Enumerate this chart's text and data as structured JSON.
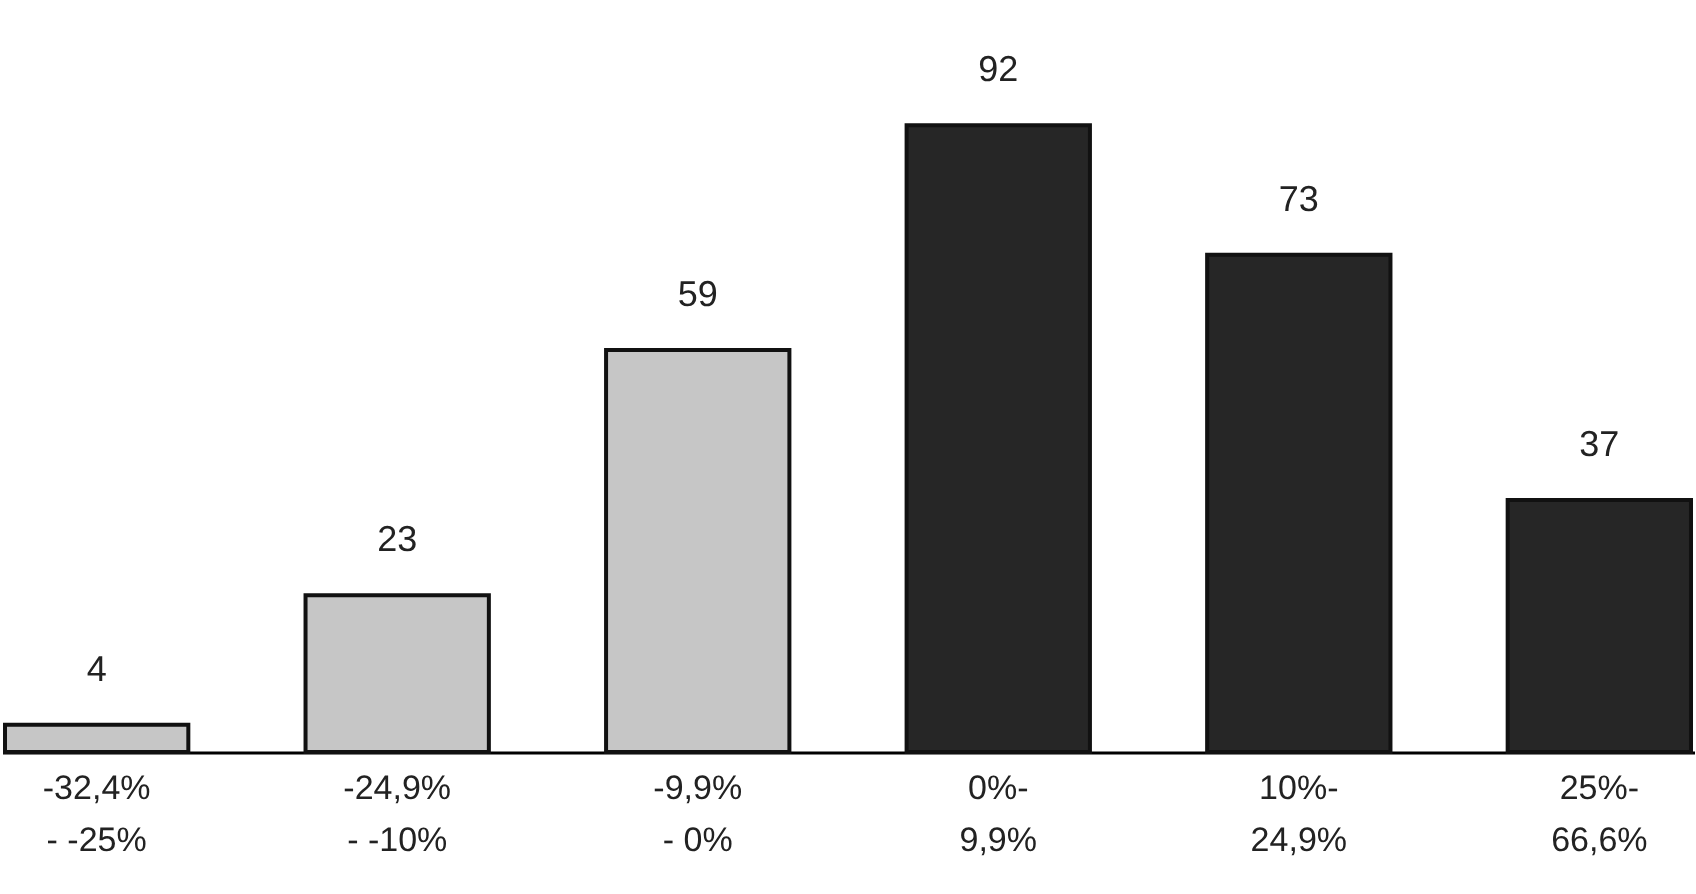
{
  "chart_data": {
    "type": "bar",
    "categories": [
      "-32,4%\n- -25%",
      "-24,9%\n- -10%",
      "-9,9%\n- 0%",
      "0%-\n9,9%",
      "10%-\n24,9%",
      "25%-\n66,6%"
    ],
    "values": [
      4,
      23,
      59,
      92,
      73,
      37
    ],
    "colors": [
      "#c6c6c6",
      "#c6c6c6",
      "#c6c6c6",
      "#262626",
      "#262626",
      "#262626"
    ],
    "data_labels": true
  }
}
